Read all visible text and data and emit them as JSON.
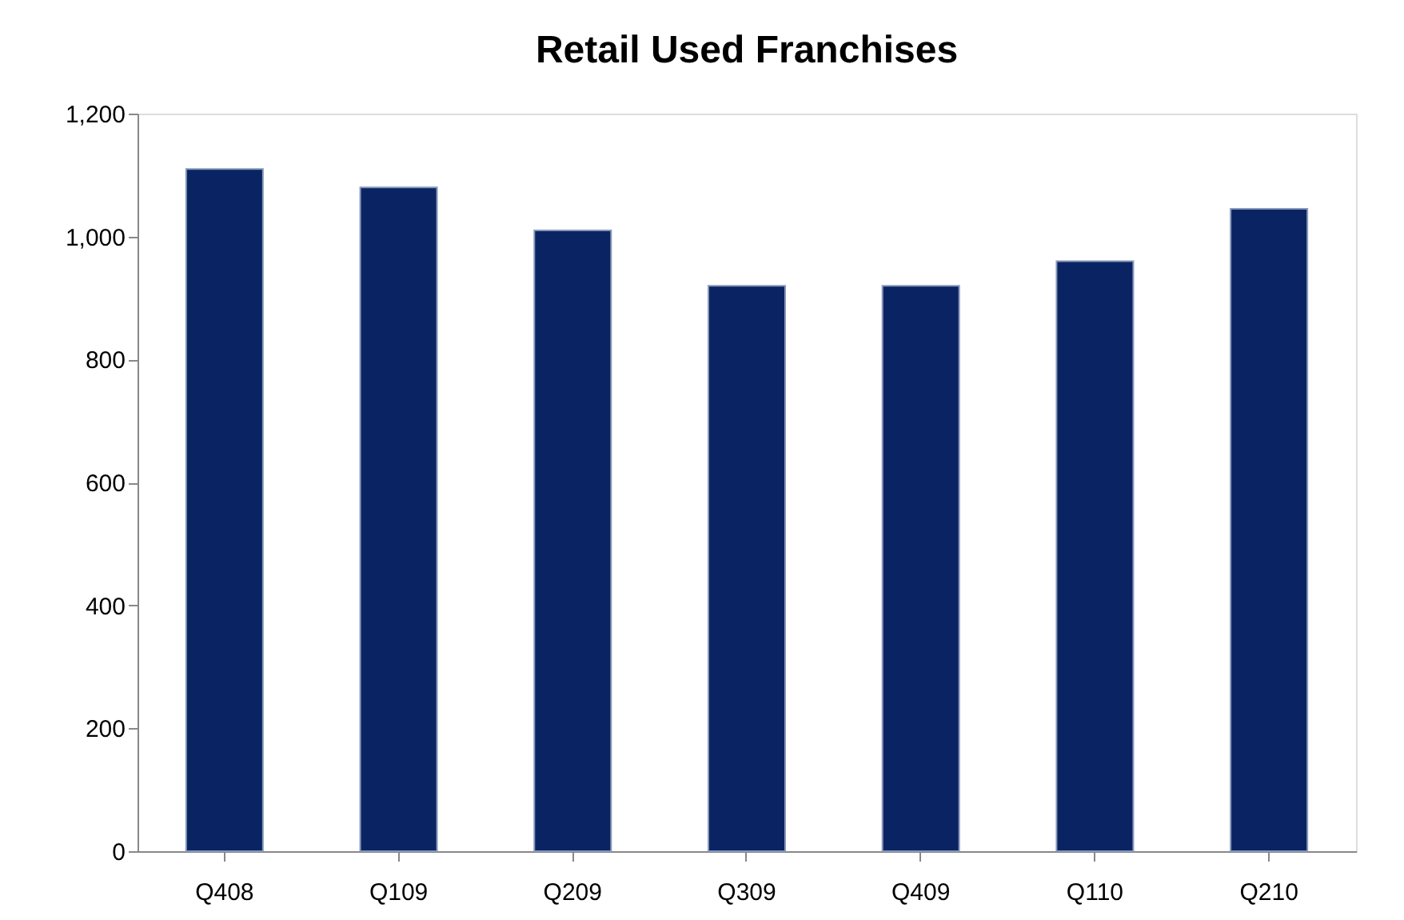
{
  "chart_data": {
    "type": "bar",
    "title": "Retail Used Franchises",
    "categories": [
      "Q408",
      "Q109",
      "Q209",
      "Q309",
      "Q409",
      "Q110",
      "Q210"
    ],
    "values": [
      1110,
      1080,
      1010,
      920,
      920,
      960,
      1045
    ],
    "color": "#0a2463",
    "ylim": [
      0,
      1200
    ],
    "yticks": [
      0,
      200,
      400,
      600,
      800,
      {
        "value": 1000,
        "label": "1,000"
      },
      {
        "value": 1200,
        "label": "1,200"
      }
    ],
    "grid": false
  }
}
